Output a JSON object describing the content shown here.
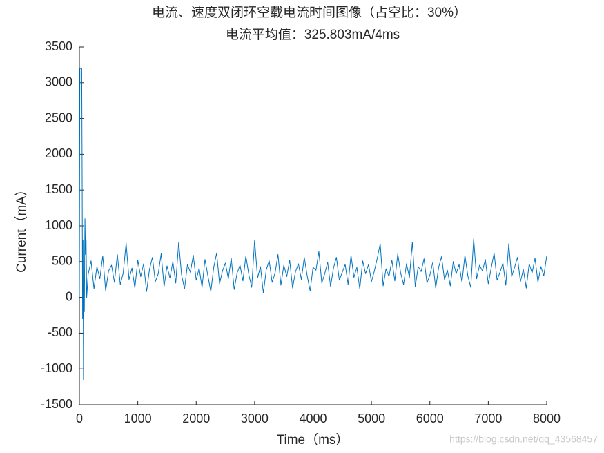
{
  "chart_data": {
    "type": "line",
    "title": "电流、速度双闭环空载电流时间图像（占空比：30%）",
    "subtitle": "电流平均值：325.803mA/4ms",
    "xlabel": "Time（ms）",
    "ylabel": "Current（mA）",
    "annotation": "https://blog.csdn.net/qq_43568457",
    "xlim": [
      0,
      8000
    ],
    "xticks": [
      0,
      1000,
      2000,
      3000,
      4000,
      5000,
      6000,
      7000,
      8000
    ],
    "ylim": [
      -1500,
      3500
    ],
    "yticks": [
      -1500,
      -1000,
      -500,
      0,
      500,
      1000,
      1500,
      2000,
      2500,
      3000,
      3500
    ],
    "grid": false,
    "x": [
      0,
      8,
      15,
      40,
      48,
      55,
      62,
      70,
      78,
      85,
      95,
      105,
      115,
      125,
      150,
      200,
      250,
      300,
      350,
      400,
      450,
      500,
      550,
      600,
      650,
      700,
      750,
      800,
      850,
      900,
      950,
      1000,
      1050,
      1100,
      1150,
      1200,
      1250,
      1300,
      1350,
      1400,
      1450,
      1500,
      1550,
      1600,
      1650,
      1700,
      1750,
      1800,
      1850,
      1900,
      1950,
      2000,
      2050,
      2100,
      2150,
      2200,
      2250,
      2300,
      2350,
      2400,
      2450,
      2500,
      2550,
      2600,
      2650,
      2700,
      2750,
      2800,
      2850,
      2900,
      2950,
      3000,
      3050,
      3100,
      3150,
      3200,
      3250,
      3300,
      3350,
      3400,
      3450,
      3500,
      3550,
      3600,
      3650,
      3700,
      3750,
      3800,
      3850,
      3900,
      3950,
      4000,
      4050,
      4100,
      4150,
      4200,
      4250,
      4300,
      4350,
      4400,
      4450,
      4500,
      4550,
      4600,
      4650,
      4700,
      4750,
      4800,
      4850,
      4900,
      4950,
      5000,
      5050,
      5100,
      5150,
      5200,
      5250,
      5300,
      5350,
      5400,
      5450,
      5500,
      5550,
      5600,
      5650,
      5700,
      5750,
      5800,
      5850,
      5900,
      5950,
      6000,
      6050,
      6100,
      6150,
      6200,
      6250,
      6300,
      6350,
      6400,
      6450,
      6500,
      6550,
      6600,
      6650,
      6700,
      6750,
      6800,
      6850,
      6900,
      6950,
      7000,
      7050,
      7100,
      7150,
      7200,
      7250,
      7300,
      7350,
      7400,
      7450,
      7500,
      7550,
      7600,
      7650,
      7700,
      7750,
      7800,
      7850,
      7900,
      7950,
      8000
    ],
    "series": [
      {
        "color": "#0072BD",
        "values": [
          0,
          3200,
          3200,
          3200,
          1500,
          -300,
          800,
          -1150,
          200,
          -200,
          1100,
          600,
          800,
          0,
          320,
          510,
          120,
          430,
          260,
          580,
          90,
          370,
          450,
          210,
          600,
          180,
          340,
          760,
          250,
          410,
          130,
          520,
          290,
          470,
          80,
          390,
          560,
          220,
          330,
          610,
          150,
          440,
          270,
          500,
          200,
          770,
          310,
          120,
          460,
          350,
          590,
          240,
          410,
          140,
          530,
          300,
          80,
          420,
          620,
          190,
          370,
          480,
          260,
          550,
          110,
          340,
          450,
          230,
          580,
          320,
          140,
          800,
          270,
          430,
          60,
          390,
          510,
          210,
          340,
          600,
          170,
          450,
          290,
          520,
          130,
          360,
          470,
          250,
          560,
          300,
          90,
          420,
          380,
          640,
          200,
          330,
          490,
          150,
          410,
          560,
          240,
          350,
          460,
          180,
          590,
          280,
          420,
          120,
          510,
          330,
          460,
          220,
          370,
          550,
          750,
          160,
          400,
          290,
          520,
          230,
          610,
          340,
          180,
          470,
          280,
          770,
          150,
          430,
          360,
          540,
          200,
          310,
          490,
          130,
          420,
          570,
          250,
          380,
          160,
          500,
          330,
          460,
          210,
          590,
          300,
          140,
          820,
          260,
          450,
          370,
          530,
          190,
          410,
          620,
          240,
          350,
          480,
          170,
          750,
          290,
          420,
          560,
          220,
          390,
          130,
          470,
          340,
          550,
          210,
          430,
          300,
          580
        ]
      }
    ]
  }
}
